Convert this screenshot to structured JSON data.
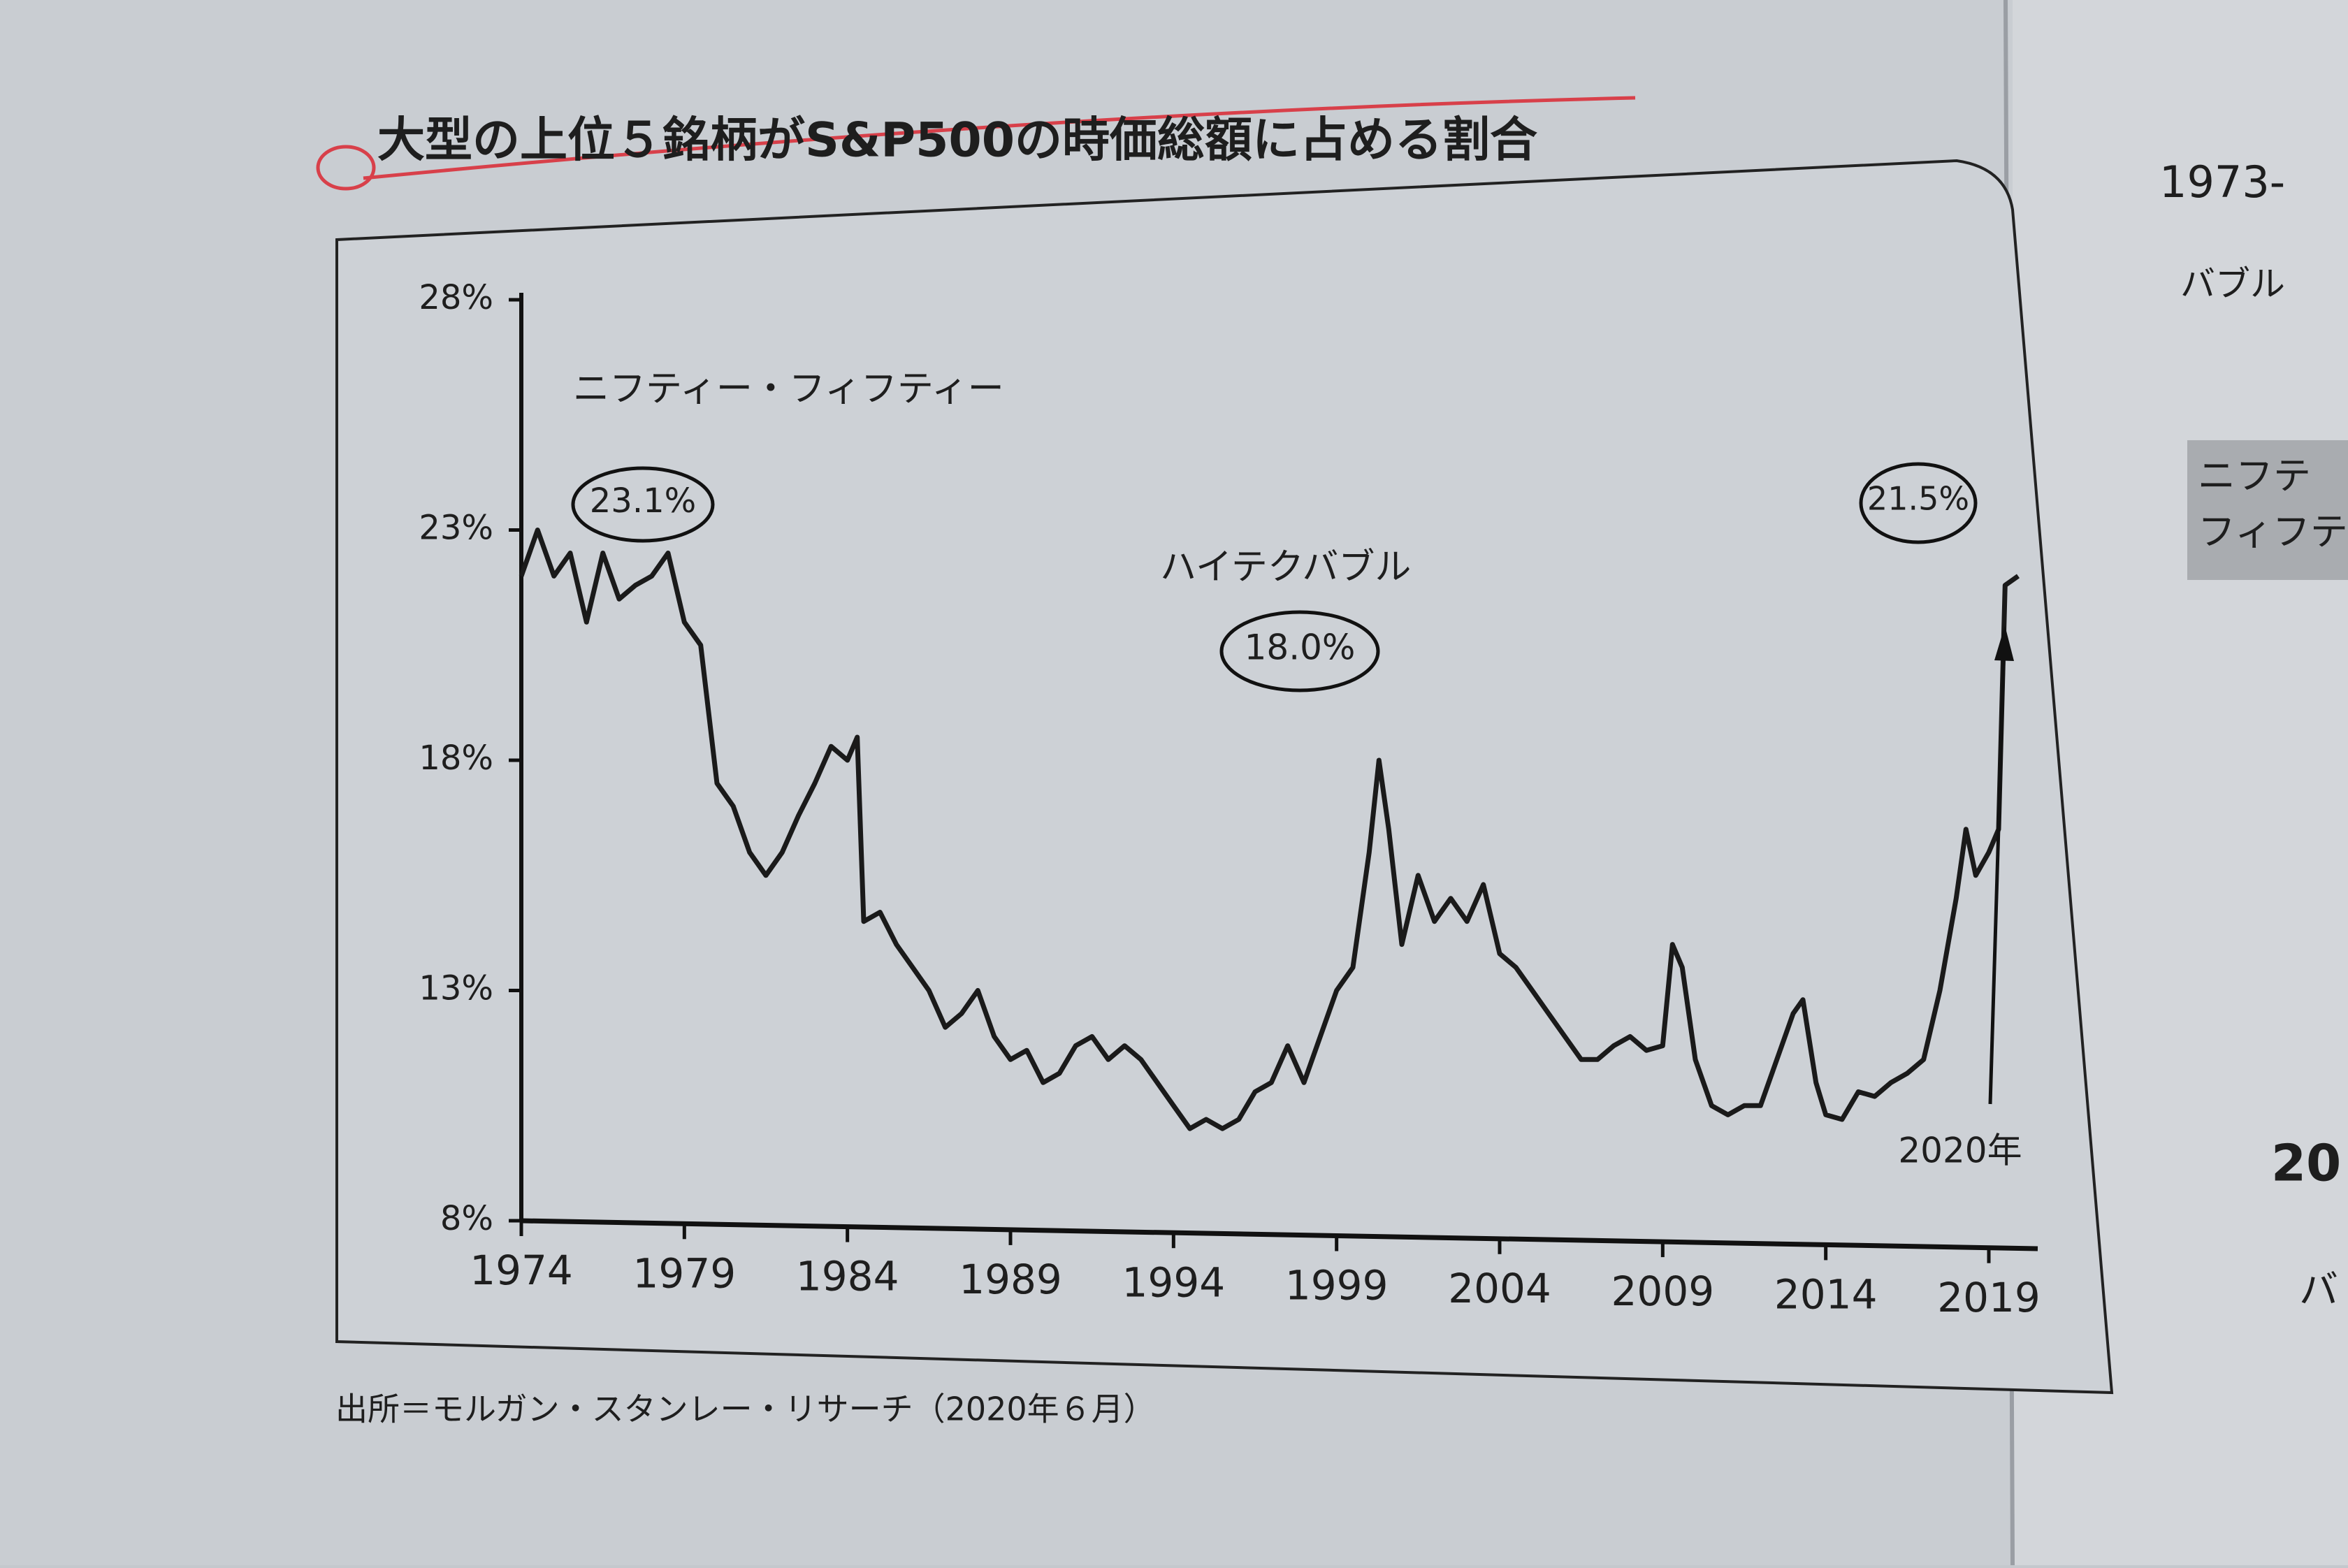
{
  "chart_data": {
    "type": "line",
    "title": "大型の上位５銘柄がS&P500の時価総額に占める割合",
    "source": "出所＝モルガン・スタンレー・リサーチ（2020年６月）",
    "annotations": [
      "ニフティー・フィフティー",
      "23.1%",
      "ハイテクバブル",
      "18.0%",
      "21.5%",
      "2020年"
    ],
    "color": "#1a1a1a",
    "x": [
      1974.0,
      1974.5,
      1975.0,
      1975.5,
      1976.0,
      1976.5,
      1977.0,
      1977.5,
      1978.0,
      1978.5,
      1979.0,
      1979.5,
      1980.0,
      1980.5,
      1981.0,
      1981.5,
      1982.0,
      1982.5,
      1983.0,
      1983.5,
      1984.0,
      1984.3,
      1984.5,
      1985.0,
      1985.5,
      1986.0,
      1986.5,
      1987.0,
      1987.5,
      1988.0,
      1988.5,
      1989.0,
      1989.5,
      1990.0,
      1990.5,
      1991.0,
      1991.5,
      1992.0,
      1992.5,
      1993.0,
      1993.5,
      1994.0,
      1994.5,
      1995.0,
      1995.5,
      1996.0,
      1996.5,
      1997.0,
      1997.5,
      1998.0,
      1998.5,
      1999.0,
      1999.5,
      2000.0,
      2000.3,
      2000.6,
      2001.0,
      2001.5,
      2002.0,
      2002.5,
      2003.0,
      2003.5,
      2004.0,
      2004.5,
      2005.0,
      2005.5,
      2006.0,
      2006.5,
      2007.0,
      2007.5,
      2008.0,
      2008.5,
      2009.0,
      2009.3,
      2009.6,
      2010.0,
      2010.5,
      2011.0,
      2011.5,
      2012.0,
      2012.5,
      2013.0,
      2013.3,
      2013.7,
      2014.0,
      2014.5,
      2015.0,
      2015.5,
      2016.0,
      2016.5,
      2017.0,
      2017.5,
      2018.0,
      2018.3,
      2018.6,
      2019.0,
      2019.3,
      2019.5,
      2019.9
    ],
    "values": [
      22,
      23,
      22,
      22.5,
      21,
      22.5,
      21.5,
      21.8,
      22,
      22.5,
      21,
      20.5,
      17.5,
      17,
      16,
      15.5,
      16,
      16.8,
      17.5,
      18.3,
      18,
      18.5,
      14.5,
      14.7,
      14,
      13.5,
      13,
      12.2,
      12.5,
      13,
      12,
      11.5,
      11.7,
      11,
      11.2,
      11.8,
      12,
      11.5,
      11.8,
      11.5,
      11,
      10.5,
      10,
      10.2,
      10,
      10.2,
      10.8,
      11,
      11.8,
      11,
      12,
      13,
      13.5,
      16,
      18,
      16.5,
      14,
      15.5,
      14.5,
      15,
      14.5,
      15.3,
      13.8,
      13.5,
      13,
      12.5,
      12,
      11.5,
      11.5,
      11.8,
      12,
      11.7,
      11.8,
      14,
      13.5,
      11.5,
      10.5,
      10.3,
      10.5,
      10.5,
      11.5,
      12.5,
      12.8,
      11,
      10.3,
      10.2,
      10.8,
      10.7,
      11,
      11.2,
      11.5,
      13,
      15,
      16.5,
      15.5,
      16,
      16.5,
      21.8,
      22
    ],
    "xlim": [
      1974,
      2020.5
    ],
    "xticks": [
      1974,
      1979,
      1984,
      1989,
      1994,
      1999,
      2004,
      2009,
      2014,
      2019
    ],
    "ylim": [
      8,
      28
    ],
    "yticks": [
      {
        "value": 8,
        "label": "8%"
      },
      {
        "value": 13,
        "label": "13%"
      },
      {
        "value": 18,
        "label": "18%"
      },
      {
        "value": 23,
        "label": "23%"
      },
      {
        "value": 28,
        "label": "28%"
      }
    ]
  },
  "margin_text": [
    "1973-",
    "バブル",
    "ニフテ",
    "フィフテ",
    "20",
    "バ"
  ]
}
